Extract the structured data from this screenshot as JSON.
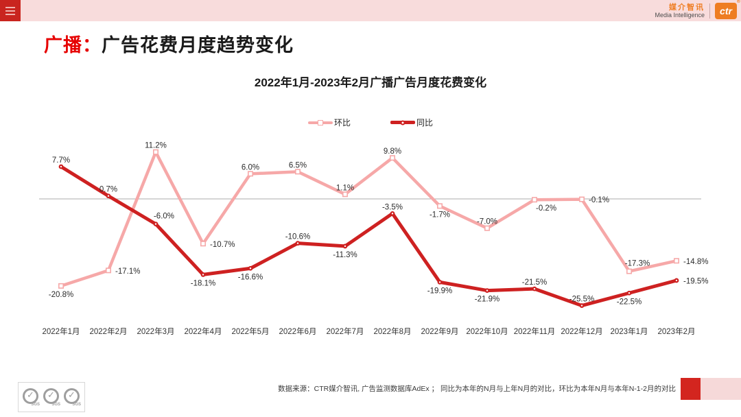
{
  "header": {
    "menu_icon": "hamburger",
    "brand_cn": "媒介智讯",
    "brand_en": "Media Intelligence",
    "brand_logo": "ctr"
  },
  "title": {
    "highlight": "广播：",
    "text": "广告花费月度趋势变化"
  },
  "chart_data": {
    "type": "line",
    "title": "2022年1月-2023年2月广播广告月度花费变化",
    "categories": [
      "2022年1月",
      "2022年2月",
      "2022年3月",
      "2022年4月",
      "2022年5月",
      "2022年6月",
      "2022年7月",
      "2022年8月",
      "2022年9月",
      "2022年10月",
      "2022年11月",
      "2022年12月",
      "2023年1月",
      "2023年2月"
    ],
    "series": [
      {
        "name": "环比",
        "color": "#F6A8A8",
        "marker": "square",
        "values": [
          -20.8,
          -17.1,
          11.2,
          -10.7,
          6.0,
          6.5,
          1.1,
          9.8,
          -1.7,
          -7.0,
          -0.2,
          -0.1,
          -17.3,
          -14.8
        ],
        "label_pos": [
          "b",
          "r",
          "a",
          "r",
          "a",
          "a",
          "a",
          "a",
          "b",
          "a",
          "br",
          "r",
          "ar",
          "r"
        ]
      },
      {
        "name": "同比",
        "color": "#CE2121",
        "marker": "circle",
        "values": [
          7.7,
          0.7,
          -6.0,
          -18.1,
          -16.6,
          -10.6,
          -11.3,
          -3.5,
          -19.9,
          -21.9,
          -21.5,
          -25.5,
          -22.5,
          -19.5
        ],
        "label_pos": [
          "a",
          "a",
          "ar",
          "b",
          "b",
          "a",
          "b",
          "a",
          "b",
          "b",
          "a",
          "a",
          "b",
          "r"
        ]
      }
    ],
    "value_suffix": "%",
    "ylim": [
      -30,
      15
    ],
    "zero_line": true,
    "grid": false,
    "legend_position": "top-center"
  },
  "footer": {
    "source": "数据来源：CTR媒介智讯, 广告监测数据库AdEx ； 同比为本年的N月与上年N月的对比，环比为本年N月与本年N-1-2月的对比",
    "sgs_label": "SGS"
  },
  "colors": {
    "accent_red": "#CE2121",
    "accent_pink": "#F6A8A8",
    "header_bar": "#F8DCDC",
    "menu_red": "#C9251F",
    "brand_orange": "#EE7D22",
    "title_red": "#E60000",
    "zero_line_gray": "#ABABAB"
  }
}
